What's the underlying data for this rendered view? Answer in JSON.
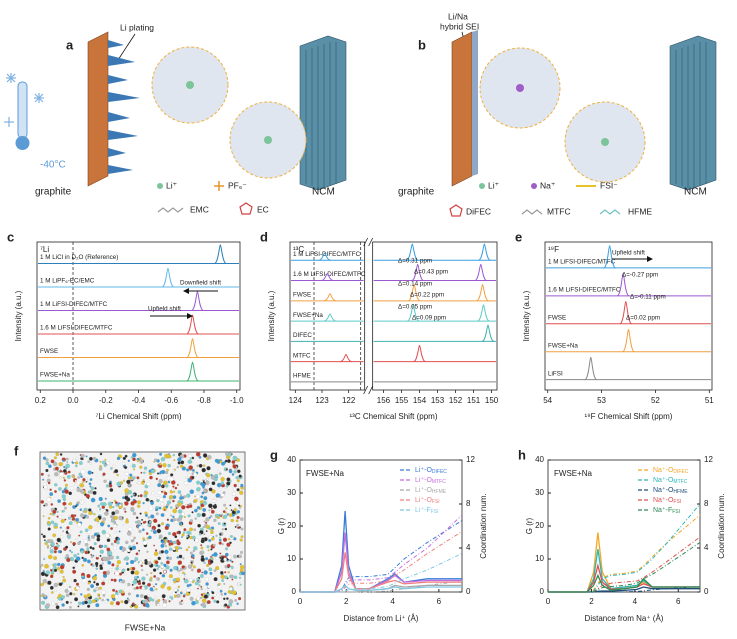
{
  "schematics": {
    "a": {
      "label": "a",
      "plating": "Li plating",
      "temperature": "-40°C",
      "anode": "graphite",
      "cathode": "NCM",
      "legend": [
        "Li⁺",
        "PF₆⁻",
        "EMC",
        "EC"
      ]
    },
    "b": {
      "label": "b",
      "sei": [
        "Li/Na",
        "hybrid SEI"
      ],
      "anode": "graphite",
      "cathode": "NCM",
      "legend": [
        "Li⁺",
        "Na⁺",
        "FSI⁻",
        "DiFEC",
        "MTFC",
        "HFME"
      ]
    },
    "f": {
      "label": "f",
      "caption": "FWSE+Na"
    }
  },
  "chart_data": [
    {
      "type": "nmr",
      "panel": "c",
      "nucleus": "⁷Li",
      "xlabel": "⁷Li Chemical Shift (ppm)",
      "ylabel": "Intensity (a.u.)",
      "xlim": [
        0.22,
        -1.02
      ],
      "xticks": [
        0.2,
        {
          "value": 0,
          "label": "0.0"
        },
        -0.2,
        -0.4,
        -0.6,
        -0.8,
        {
          "value": -1,
          "label": "-1.0"
        }
      ],
      "ref_lines": [
        0
      ],
      "series": [
        {
          "name": "1 M LiCl in D₂O (Reference)",
          "color": "#2c7fb8",
          "peaks": [
            -0.9
          ]
        },
        {
          "name": "1 M LiPF₆-EC/EMC",
          "color": "#5fb8e8",
          "peaks": [
            -0.58
          ]
        },
        {
          "name": "1 M LiFSI-DIFEC/MTFC",
          "color": "#9b59d0",
          "peaks": [
            -0.76
          ]
        },
        {
          "name": "1.6 M LiFSI-DIFEC/MTFC",
          "color": "#e05050",
          "peaks": [
            -0.73
          ]
        },
        {
          "name": "FWSE",
          "color": "#f0a040",
          "peaks": [
            -0.73
          ]
        },
        {
          "name": "FWSE+Na",
          "color": "#3cb371",
          "peaks": [
            -0.73
          ]
        }
      ],
      "annotations": [
        "Downfield shift",
        "Upfield shift"
      ]
    },
    {
      "type": "nmr",
      "panel": "d",
      "nucleus": "¹³C",
      "xlabel": "¹³C Chemical Shift (ppm)",
      "ylabel": "Intensity (a.u.)",
      "xlim": [
        [
          124.2,
          121.4
        ],
        [
          156.6,
          149.7
        ]
      ],
      "xticks": [
        [
          124,
          123,
          122
        ],
        [
          156,
          155,
          154,
          153,
          152,
          151,
          150
        ]
      ],
      "ref_lines": [
        123.3,
        121.55
      ],
      "series": [
        {
          "name": "1 M LiFSI-DIFEC/MTFC",
          "color": "#3aa0e0",
          "peaks": [
            122.9,
            154.4,
            150.4
          ]
        },
        {
          "name": "1.6 M LiFSI-DIFEC/MTFC",
          "color": "#9b59d0",
          "peaks": [
            122.8,
            154.1,
            150.6
          ]
        },
        {
          "name": "FWSE",
          "color": "#f0a040",
          "peaks": [
            122.7,
            154.3,
            150.5
          ]
        },
        {
          "name": "FWSE+Na",
          "color": "#5fc9c9",
          "peaks": [
            122.7,
            154.35,
            150.45
          ]
        },
        {
          "name": "DIFEC",
          "color": "#40b0b0",
          "peaks": [
            150.2
          ]
        },
        {
          "name": "MTFC",
          "color": "#e05050",
          "peaks": [
            122.1,
            154.0
          ]
        },
        {
          "name": "HFME",
          "color": "#888888",
          "peaks": []
        }
      ],
      "annotations": [
        "Δ=0.31 ppm",
        "Δ=0.43 ppm",
        "Δ=0.14 ppm",
        "Δ=0.22 ppm",
        "Δ=0.05 ppm",
        "Δ=0.09 ppm"
      ]
    },
    {
      "type": "nmr",
      "panel": "e",
      "nucleus": "¹⁹F",
      "xlabel": "¹⁹F Chemical Shift (ppm)",
      "ylabel": "Intensity (a.u.)",
      "xlim": [
        54.05,
        50.95
      ],
      "xticks": [
        54,
        53,
        52,
        51
      ],
      "series": [
        {
          "name": "1 M LiFSI-DIFEC/MTFC",
          "color": "#3aa0e0",
          "peaks": [
            52.85
          ]
        },
        {
          "name": "1.6 M LiFSI-DIFEC/MTFC",
          "color": "#9b59d0",
          "peaks": [
            52.6
          ]
        },
        {
          "name": "FWSE",
          "color": "#e05050",
          "peaks": [
            52.55
          ]
        },
        {
          "name": "FWSE+Na",
          "color": "#f0a040",
          "peaks": [
            52.5
          ]
        },
        {
          "name": "LiFSI",
          "color": "#888888",
          "peaks": [
            53.2
          ]
        }
      ],
      "annotations": [
        "Upfield shift",
        "Δ=-0.27 ppm",
        "Δ=-0.11 ppm",
        "Δ=0.02 ppm"
      ]
    },
    {
      "type": "line",
      "panel": "g",
      "annotation": "FWSE+Na",
      "xlabel": "Distance from Li⁺ (Å)",
      "ylabel": "G (r)",
      "y2label": "Coordination num.",
      "xlim": [
        0,
        7
      ],
      "xticks": [
        0,
        2,
        4,
        6
      ],
      "ylim": [
        0,
        40
      ],
      "yticks": [
        0,
        10,
        20,
        30,
        40
      ],
      "y2lim": [
        0,
        12
      ],
      "y2ticks": [
        0,
        4,
        8,
        12
      ],
      "x": [
        0,
        1.5,
        1.8,
        1.95,
        2.1,
        2.4,
        3,
        3.8,
        4.1,
        4.5,
        5.5,
        7
      ],
      "series": [
        {
          "name": "Li⁺-O",
          "sub": "DIFEC",
          "color": "#3a7bd5",
          "values": [
            0,
            0,
            8,
            24.5,
            8,
            1,
            1,
            4,
            5.5,
            3,
            4,
            4
          ],
          "cn_values": [
            0,
            0,
            0.2,
            0.8,
            1.3,
            1.4,
            1.4,
            1.6,
            2.2,
            3,
            4.5,
            6.5
          ]
        },
        {
          "name": "Li⁺-O",
          "sub": "MTFC",
          "color": "#c36ee0",
          "values": [
            0,
            0,
            6,
            18,
            6,
            1,
            1,
            3.5,
            5,
            3,
            3.5,
            3.5
          ],
          "cn_values": [
            0,
            0,
            0.1,
            0.6,
            1,
            1.1,
            1.1,
            1.3,
            1.8,
            2.5,
            4,
            7
          ]
        },
        {
          "name": "Li⁺-O",
          "sub": "HFME",
          "color": "#a8a8a8",
          "values": [
            0,
            0,
            0,
            0,
            0,
            0,
            0.5,
            1,
            2,
            1.5,
            2,
            2
          ],
          "cn_values": [
            0,
            0,
            0,
            0,
            0,
            0,
            0,
            0.1,
            0.2,
            0.3,
            0.6,
            1
          ]
        },
        {
          "name": "Li⁺-O",
          "sub": "FSI",
          "color": "#f08080",
          "values": [
            0,
            0,
            4,
            12,
            5,
            1,
            1,
            3,
            3.5,
            2.5,
            3,
            3
          ],
          "cn_values": [
            0,
            0,
            0.1,
            0.4,
            0.7,
            0.8,
            0.8,
            1,
            1.5,
            2,
            3.5,
            5.5
          ]
        },
        {
          "name": "Li⁺-F",
          "sub": "FSI",
          "color": "#7ec8e3",
          "values": [
            0,
            0,
            1,
            2,
            1,
            0.5,
            0.5,
            1,
            1.5,
            1,
            1.5,
            1.5
          ],
          "cn_values": [
            0,
            0,
            0,
            0.1,
            0.2,
            0.3,
            0.3,
            0.5,
            0.8,
            1.2,
            2,
            3.5
          ]
        }
      ]
    },
    {
      "type": "line",
      "panel": "h",
      "annotation": "FWSE+Na",
      "xlabel": "Distance from Na⁺ (Å)",
      "ylabel": "G (r)",
      "y2label": "Coordination num.",
      "xlim": [
        0,
        7
      ],
      "xticks": [
        0,
        2,
        4,
        6
      ],
      "ylim": [
        0,
        40
      ],
      "yticks": [
        0,
        10,
        20,
        30,
        40
      ],
      "y2lim": [
        0,
        12
      ],
      "y2ticks": [
        0,
        4,
        8,
        12
      ],
      "x": [
        0,
        1.8,
        2.1,
        2.3,
        2.5,
        2.9,
        3.5,
        4.1,
        4.4,
        4.8,
        5.5,
        7
      ],
      "series": [
        {
          "name": "Na⁺-O",
          "sub": "DIFEC",
          "color": "#f5a623",
          "values": [
            0,
            0,
            6,
            18,
            6,
            1,
            1.5,
            2,
            3,
            1.5,
            1.5,
            1.5
          ],
          "cn_values": [
            0,
            0,
            0.2,
            0.8,
            1.3,
            1.6,
            1.7,
            1.9,
            2.4,
            3.2,
            4.5,
            7
          ]
        },
        {
          "name": "Na⁺-O",
          "sub": "MTFC",
          "color": "#2ab7b7",
          "values": [
            0,
            0,
            4,
            13,
            4,
            1,
            1.5,
            2,
            3.5,
            1.5,
            1.5,
            1.5
          ],
          "cn_values": [
            0,
            0,
            0.1,
            0.6,
            1.2,
            1.5,
            1.6,
            1.8,
            2.3,
            3,
            4.5,
            8
          ]
        },
        {
          "name": "Na⁺-O",
          "sub": "HFME",
          "color": "#1f4e79",
          "values": [
            0,
            0,
            0,
            0.2,
            0.3,
            0.3,
            0.5,
            0.8,
            1.5,
            1,
            1,
            1
          ],
          "cn_values": [
            0,
            0,
            0,
            0,
            0,
            0,
            0,
            0.05,
            0.1,
            0.2,
            0.3,
            0.5
          ]
        },
        {
          "name": "Na⁺-O",
          "sub": "FSI",
          "color": "#e05050",
          "values": [
            0,
            0,
            3,
            8,
            3,
            0.8,
            1,
            1.5,
            2.5,
            1.5,
            1.5,
            1.5
          ],
          "cn_values": [
            0,
            0,
            0.05,
            0.3,
            0.6,
            0.8,
            0.9,
            1,
            1.3,
            1.8,
            2.8,
            5
          ]
        },
        {
          "name": "Na⁺-F",
          "sub": "FSI",
          "color": "#2e8b57",
          "values": [
            0,
            0,
            2,
            5,
            2,
            0.5,
            1,
            1.5,
            4,
            1.5,
            1.5,
            1.5
          ],
          "cn_values": [
            0,
            0,
            0.03,
            0.2,
            0.4,
            0.5,
            0.6,
            0.8,
            1.2,
            1.6,
            2.5,
            4.5
          ]
        }
      ]
    }
  ]
}
